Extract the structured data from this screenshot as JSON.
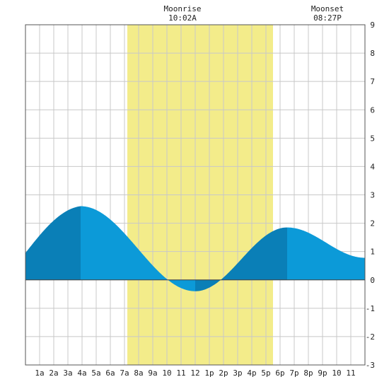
{
  "header": {
    "moonrise_label": "Moonrise",
    "moonrise_time": "10:02A",
    "moonset_label": "Moonset",
    "moonset_time": "08:27P"
  },
  "chart_data": {
    "type": "area",
    "title": "",
    "xlabel": "",
    "ylabel": "",
    "x_range": [
      0,
      24
    ],
    "ylim": [
      -3,
      9
    ],
    "y_ticks": [
      9,
      8,
      7,
      6,
      5,
      4,
      3,
      2,
      1,
      0,
      -1,
      -2,
      -3
    ],
    "x_tick_labels": [
      "1a",
      "2a",
      "3a",
      "4a",
      "5a",
      "6a",
      "7a",
      "8a",
      "9a",
      "10",
      "11",
      "12",
      "1p",
      "2p",
      "3p",
      "4p",
      "5p",
      "6p",
      "7p",
      "8p",
      "9p",
      "10",
      "11"
    ],
    "grid": true,
    "daylight_hours": [
      7.2,
      17.5
    ],
    "tide_extremes": [
      {
        "hour": 3.9,
        "height": 2.6
      },
      {
        "hour": 12.0,
        "height": -0.4
      },
      {
        "hour": 18.5,
        "height": 1.85
      }
    ],
    "start_height": 0.95,
    "end_height": 0.78,
    "colors": {
      "daylight": "#f3ec8a",
      "tide": "#0c9ad8",
      "tide_dark": "#0a7fb7",
      "grid": "#c8c8c8",
      "frame": "#555555"
    }
  }
}
